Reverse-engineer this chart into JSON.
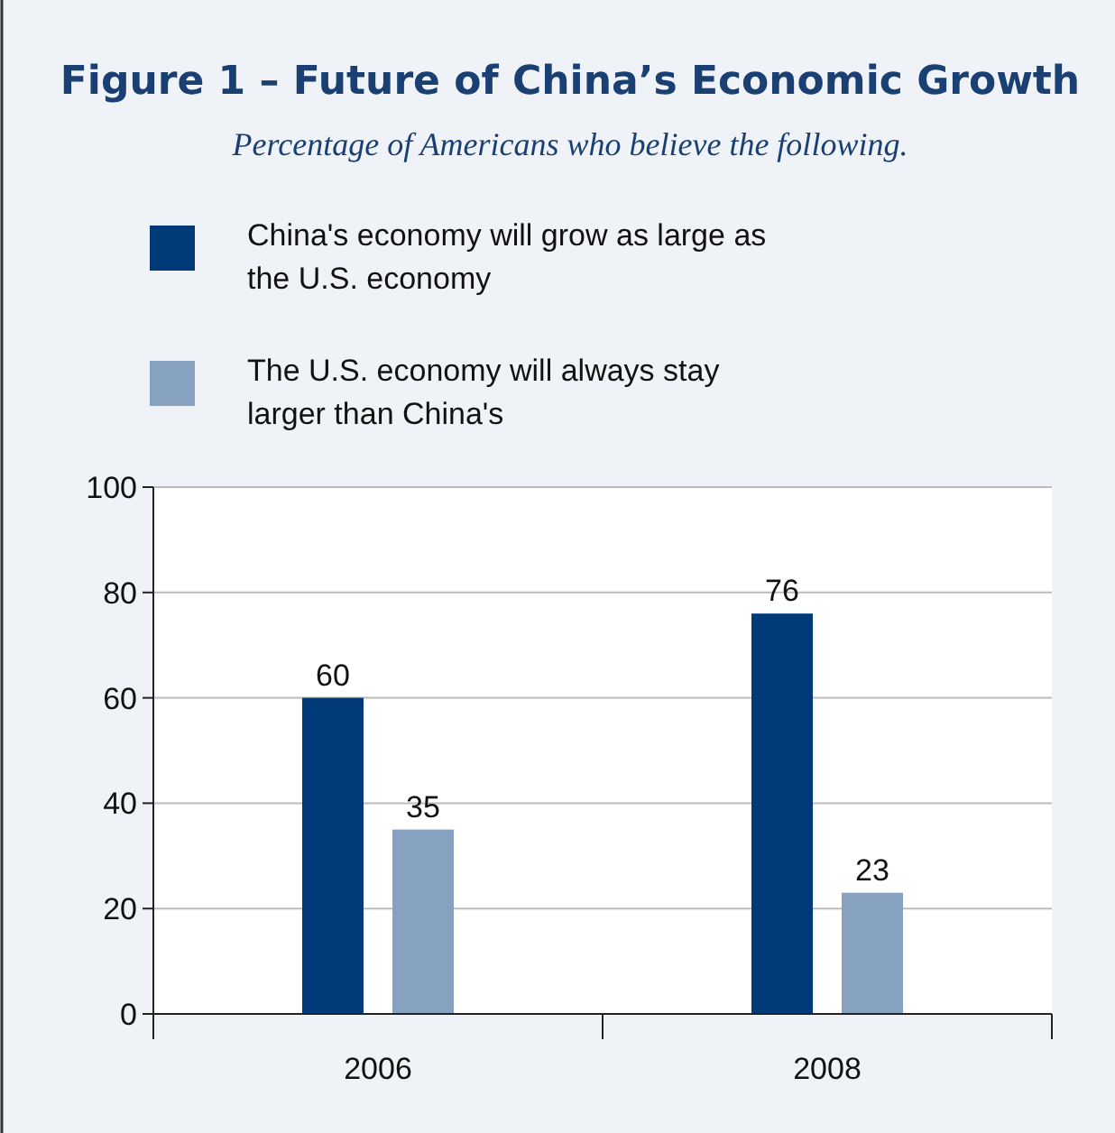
{
  "chart_data": {
    "type": "bar",
    "title": "Figure 1 – Future of China’s Economic Growth",
    "subtitle": "Percentage of Americans who believe the following.",
    "categories": [
      "2006",
      "2008"
    ],
    "series": [
      {
        "name": "China's economy will grow as large as the U.S. economy",
        "color": "#003a78",
        "values": [
          60,
          76
        ]
      },
      {
        "name": "The U.S. economy will always stay larger than China's",
        "color": "#87a2c0",
        "values": [
          35,
          23
        ]
      }
    ],
    "ylim": [
      0,
      100
    ],
    "yticks": [
      0,
      20,
      40,
      60,
      80,
      100
    ],
    "grid": "y",
    "legend": "top",
    "data_labels": true
  }
}
